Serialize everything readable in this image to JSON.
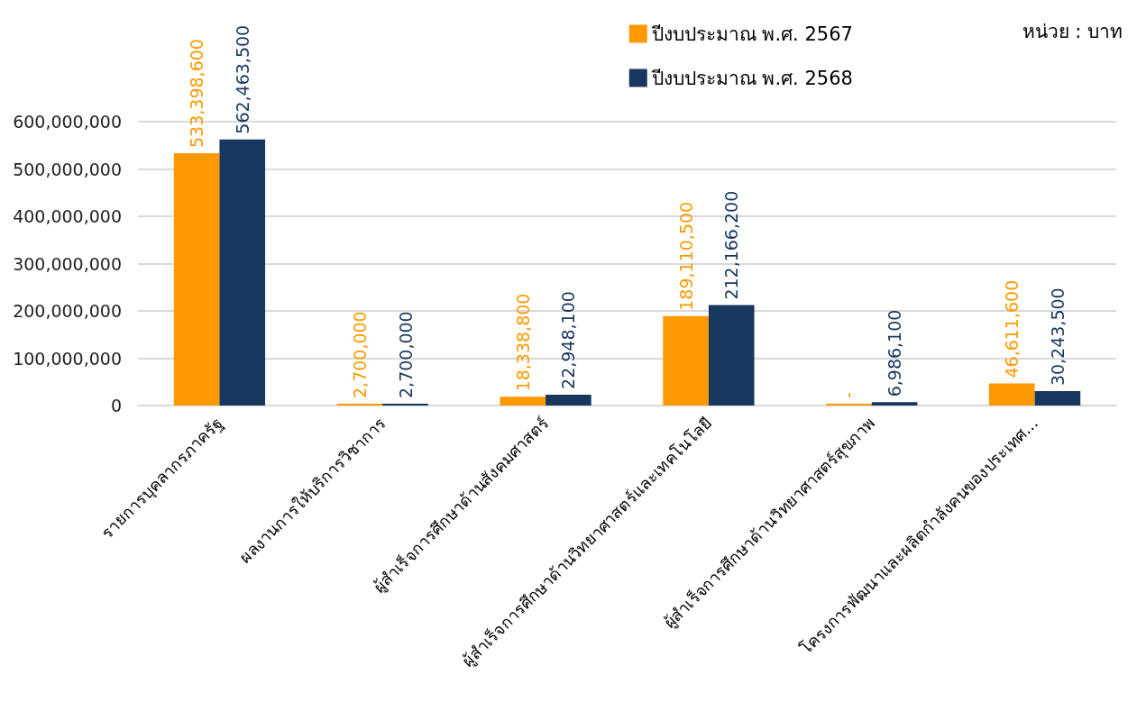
{
  "chart_data": {
    "type": "bar",
    "categories": [
      "รายการบุคลากรภาครัฐ",
      "ผลงานการให้บริการวิชาการ",
      "ผู้สำเร็จการศึกษาด้านสังคมศาสตร์",
      "ผู้สำเร็จการศึกษาด้านวิทยาศาสตร์และเทคโนโลยี",
      "ผู้สำเร็จการศึกษาด้านวิทยาศาสตร์สุขภาพ",
      "โครงการพัฒนาและผลิตกำลังคนของประเทศ..."
    ],
    "series": [
      {
        "name": "ปีงบประมาณ พ.ศ. 2567",
        "color": "#ff9900",
        "values": [
          533398600,
          2700000,
          18338800,
          189110500,
          0,
          46611600
        ],
        "value_labels": [
          "533,398,600",
          "2,700,000",
          "18,338,800",
          "189,110,500",
          "-",
          "46,611,600"
        ]
      },
      {
        "name": "ปีงบประมาณ พ.ศ. 2568",
        "color": "#17375e",
        "values": [
          562463500,
          2700000,
          22948100,
          212166200,
          6986100,
          30243500
        ],
        "value_labels": [
          "562,463,500",
          "2,700,000",
          "22,948,100",
          "212,166,200",
          "6,986,100",
          "30,243,500"
        ]
      }
    ],
    "ylim": [
      0,
      600000000
    ],
    "yticks": [
      {
        "value": 0,
        "label": "0"
      },
      {
        "value": 100000000,
        "label": "100,000,000"
      },
      {
        "value": 200000000,
        "label": "200,000,000"
      },
      {
        "value": 300000000,
        "label": "300,000,000"
      },
      {
        "value": 400000000,
        "label": "400,000,000"
      },
      {
        "value": 500000000,
        "label": "500,000,000"
      },
      {
        "value": 600000000,
        "label": "600,000,000"
      }
    ],
    "grid": "y",
    "legend": "top",
    "annotations": [
      "หน่วย : บาท"
    ]
  }
}
